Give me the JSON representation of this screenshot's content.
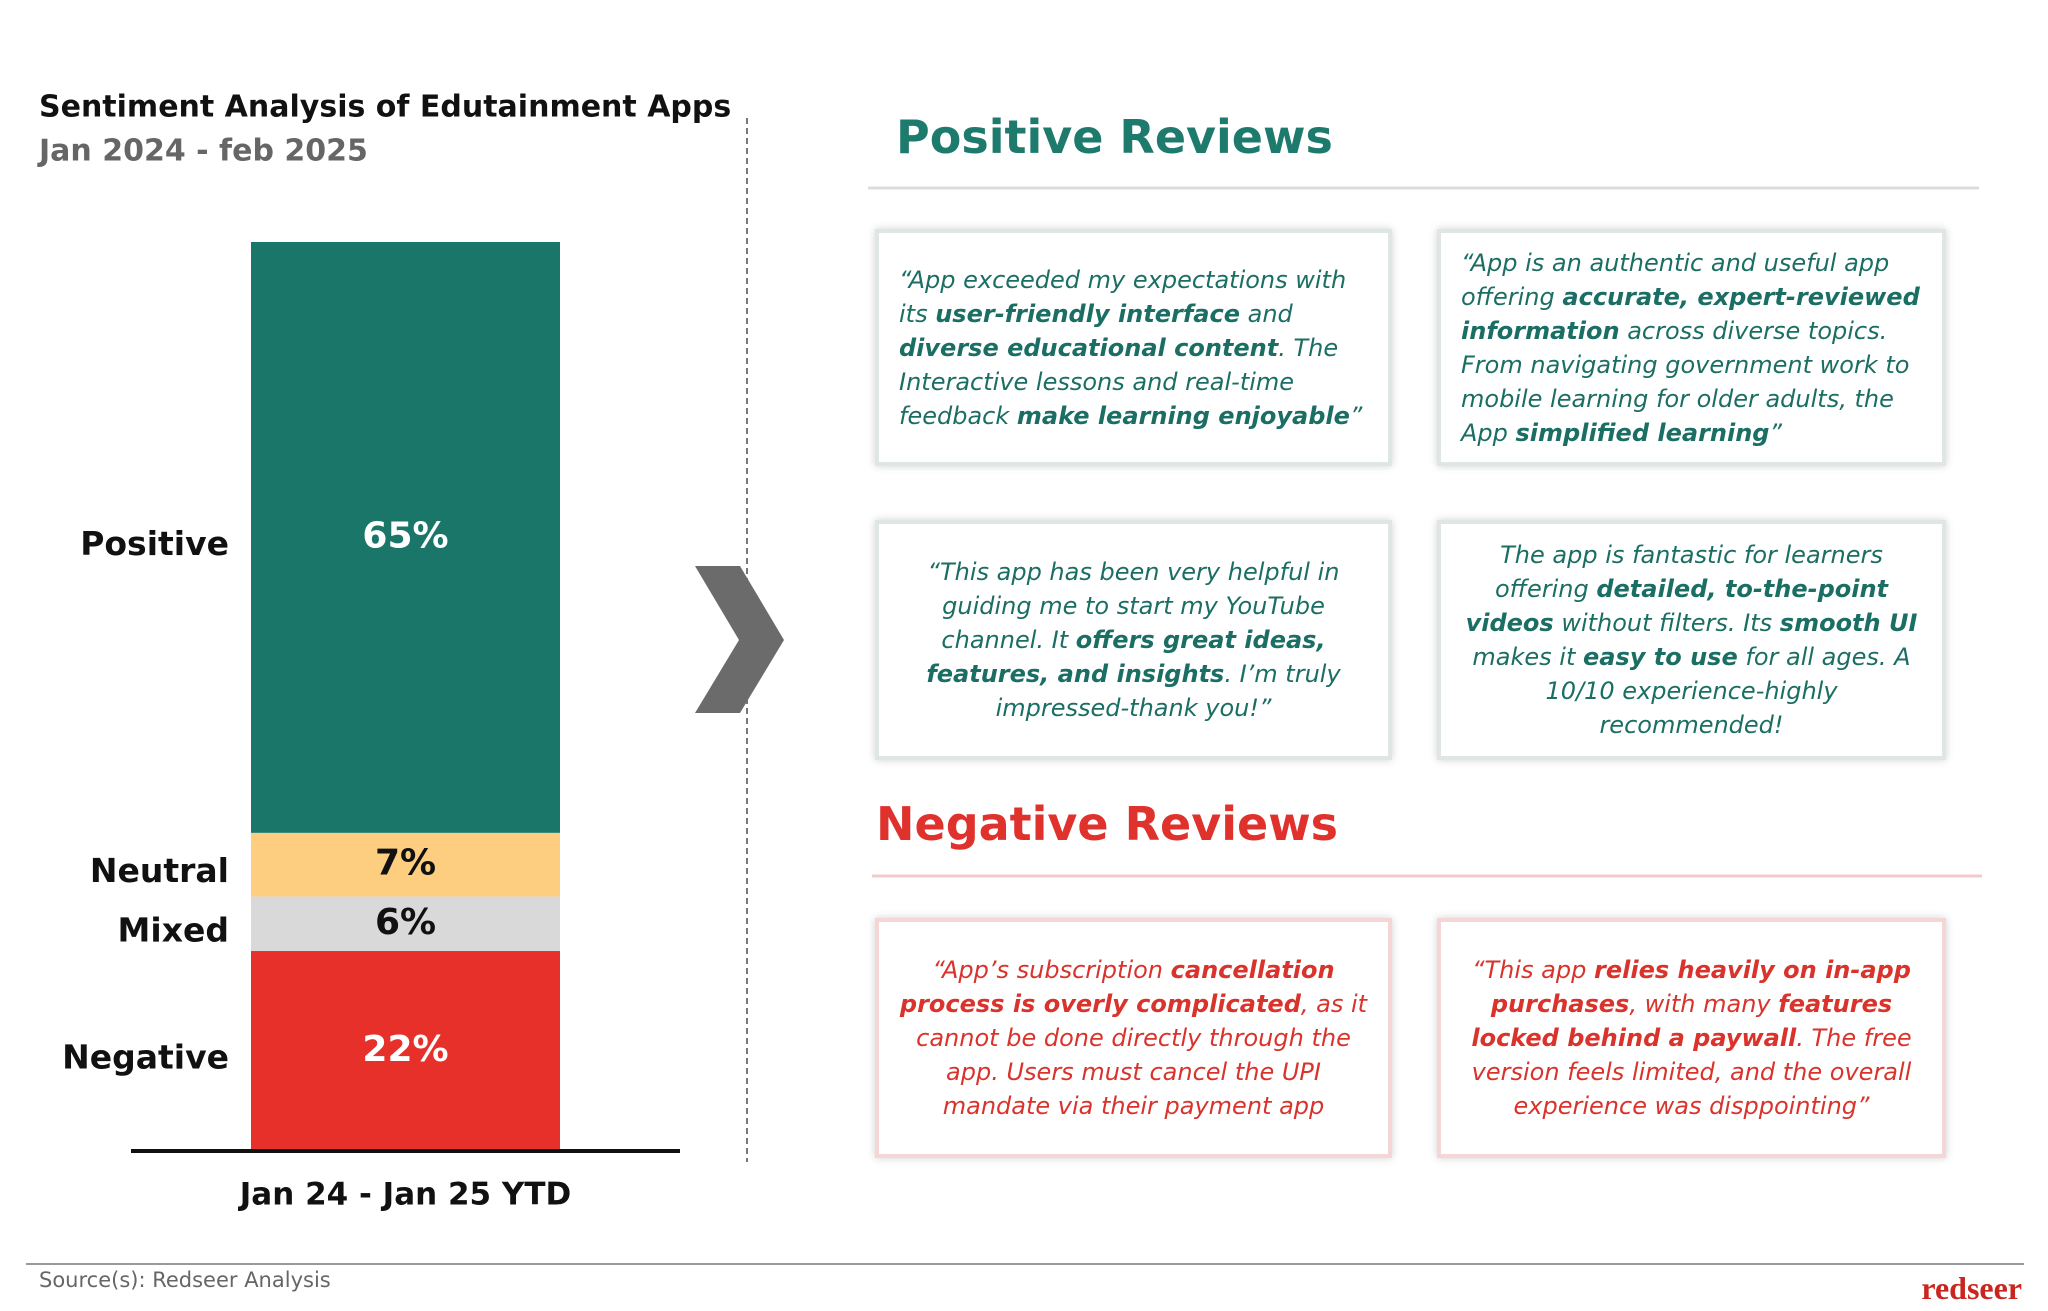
{
  "chart_data": {
    "type": "bar",
    "stacked": true,
    "title": "Sentiment Analysis of Edutainment Apps",
    "subtitle": "Jan 2024 - feb 2025",
    "categories": [
      "Jan 24 - Jan 25 YTD"
    ],
    "ylim": [
      0,
      100
    ],
    "series": [
      {
        "name": "Positive",
        "color": "#1b766a",
        "values": [
          65
        ],
        "value_labels": [
          "65%"
        ]
      },
      {
        "name": "Neutral",
        "color": "#fdcd80",
        "values": [
          7
        ],
        "value_labels": [
          "7%"
        ]
      },
      {
        "name": "Mixed",
        "color": "#d9d9d9",
        "values": [
          6
        ],
        "value_labels": [
          "6%"
        ]
      },
      {
        "name": "Negative",
        "color": "#e8302a",
        "values": [
          22
        ],
        "value_labels": [
          "22%"
        ]
      }
    ]
  },
  "positive_reviews": {
    "heading": "Positive Reviews",
    "cards": [
      [
        {
          "text": "“App exceeded my expectations with its ",
          "bold": false
        },
        {
          "text": "user-friendly interface",
          "bold": true
        },
        {
          "text": " and ",
          "bold": false
        },
        {
          "text": "diverse educational content",
          "bold": true
        },
        {
          "text": ". The Interactive lessons and real-time feedback ",
          "bold": false
        },
        {
          "text": "make learning enjoyable",
          "bold": true
        },
        {
          "text": "”",
          "bold": false
        }
      ],
      [
        {
          "text": "“App is an authentic and useful app offering ",
          "bold": false
        },
        {
          "text": "accurate, expert-reviewed information",
          "bold": true
        },
        {
          "text": " across diverse topics. From navigating government work to mobile learning for older adults, the App ",
          "bold": false
        },
        {
          "text": "simplified learning",
          "bold": true
        },
        {
          "text": "”",
          "bold": false
        }
      ],
      [
        {
          "text": "“This app has been very helpful in guiding me to start my YouTube channel. It ",
          "bold": false
        },
        {
          "text": "offers great ideas, features, and insights",
          "bold": true
        },
        {
          "text": ". I’m truly impressed-thank you!”",
          "bold": false
        }
      ],
      [
        {
          "text": "The app is fantastic for learners offering ",
          "bold": false
        },
        {
          "text": "detailed, to-the-point videos",
          "bold": true
        },
        {
          "text": " without filters. Its ",
          "bold": false
        },
        {
          "text": "smooth UI",
          "bold": true
        },
        {
          "text": " makes it ",
          "bold": false
        },
        {
          "text": "easy to use",
          "bold": true
        },
        {
          "text": " for all ages. A 10/10 experience-highly recommended!",
          "bold": false
        }
      ]
    ]
  },
  "negative_reviews": {
    "heading": "Negative Reviews",
    "cards": [
      [
        {
          "text": "“App’s subscription ",
          "bold": false
        },
        {
          "text": "cancellation process is overly complicated",
          "bold": true
        },
        {
          "text": ", as it cannot be done directly through the app. Users must cancel the UPI mandate via their payment app",
          "bold": false
        }
      ],
      [
        {
          "text": "“This app ",
          "bold": false
        },
        {
          "text": "relies heavily on in-app purchases",
          "bold": true
        },
        {
          "text": ", with many ",
          "bold": false
        },
        {
          "text": "features locked behind a paywall",
          "bold": true
        },
        {
          "text": ". The free version feels limited, and the overall experience was disppointing”",
          "bold": false
        }
      ]
    ]
  },
  "source": "Source(s): Redseer Analysis",
  "logo": "redseer"
}
